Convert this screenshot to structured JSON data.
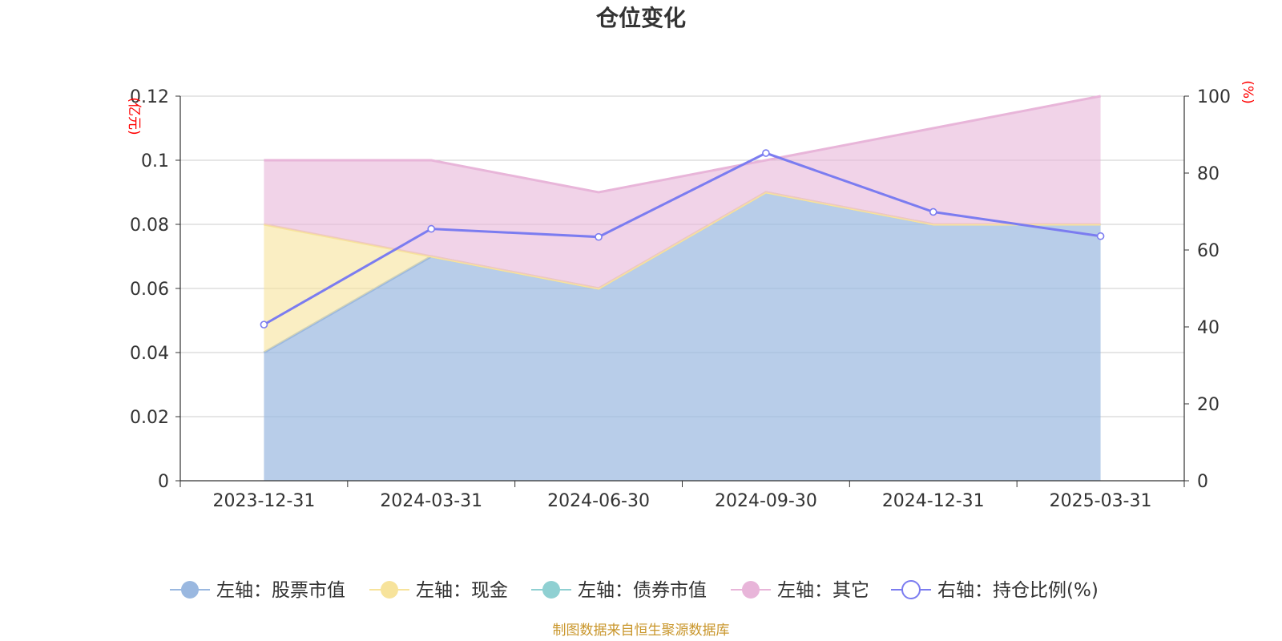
{
  "title": "仓位变化",
  "source_note": "制图数据来自恒生聚源数据库",
  "left_unit": "(亿元)",
  "right_unit": "(%)",
  "chart_data": {
    "type": "area",
    "categories": [
      "2023-12-31",
      "2024-03-31",
      "2024-06-30",
      "2024-09-30",
      "2024-12-31",
      "2025-03-31"
    ],
    "left_axis": {
      "ylim": [
        0,
        0.12
      ],
      "ticks": [
        "0",
        "0.02",
        "0.04",
        "0.06",
        "0.08",
        "0.1",
        "0.12"
      ]
    },
    "right_axis": {
      "ylim": [
        0,
        100
      ],
      "ticks": [
        "0",
        "20",
        "40",
        "60",
        "80",
        "100"
      ]
    },
    "stacked": true,
    "series": [
      {
        "name": "左轴：股票市值",
        "axis": "left",
        "kind": "area",
        "color": "#9ab8e0",
        "values": [
          0.04,
          0.07,
          0.06,
          0.09,
          0.08,
          0.08
        ]
      },
      {
        "name": "左轴：现金",
        "axis": "left",
        "kind": "area",
        "color": "#f7e39b",
        "values": [
          0.04,
          0.0,
          0.0,
          0.0,
          0.0,
          0.0
        ]
      },
      {
        "name": "左轴：债券市值",
        "axis": "left",
        "kind": "area",
        "color": "#8fd0d2",
        "values": [
          0,
          0,
          0,
          0,
          0,
          0
        ]
      },
      {
        "name": "左轴：其它",
        "axis": "left",
        "kind": "area",
        "color": "#e8b5d9",
        "values": [
          0.02,
          0.03,
          0.03,
          0.01,
          0.03,
          0.04
        ]
      },
      {
        "name": "右轴：持仓比例(%)",
        "axis": "right",
        "kind": "line",
        "color": "#7b7cf0",
        "values": [
          40.6,
          65.5,
          63.4,
          85.2,
          69.9,
          63.6
        ]
      }
    ],
    "grid": true,
    "legend_position": "bottom"
  }
}
